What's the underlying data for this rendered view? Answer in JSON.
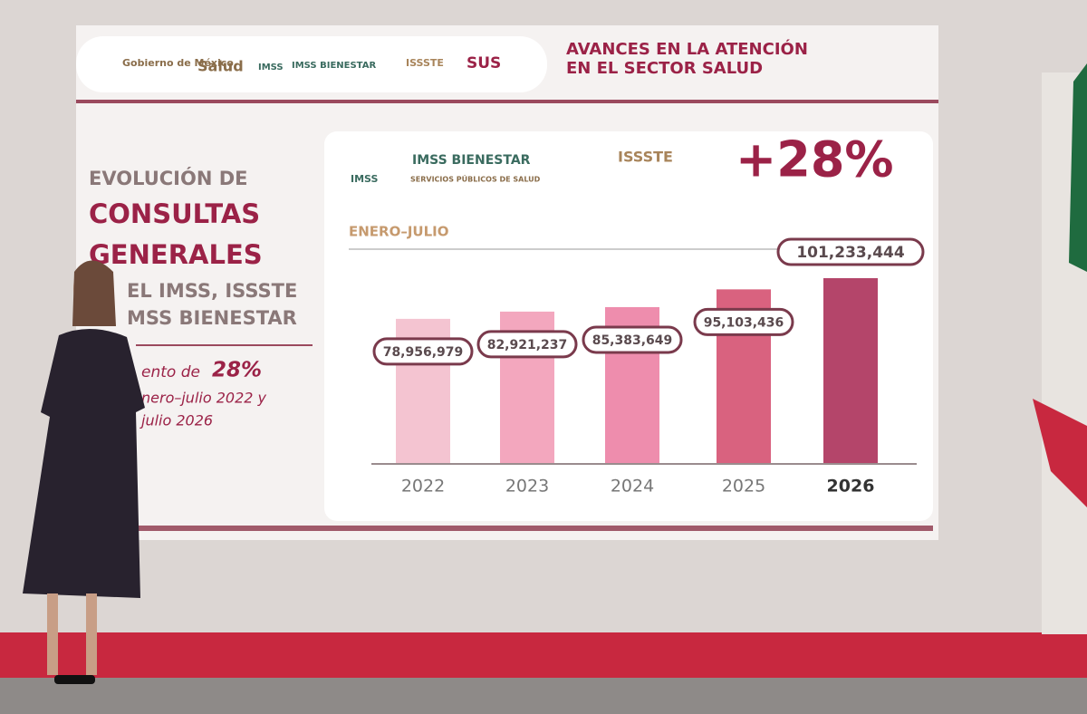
{
  "header": {
    "gobierno": "Gobierno de México",
    "salud": "Salud",
    "imss": "IMSS",
    "imss_bienestar": "IMSS BIENESTAR",
    "issste": "ISSSTE",
    "sus": "SUS",
    "title_line1": "AVANCES EN LA ATENCIÓN",
    "title_line2": "EN EL SECTOR SALUD"
  },
  "side_text": {
    "line1": "EVOLUCIÓN DE",
    "line2": "CONSULTAS",
    "line3": "GENERALES",
    "line4": "EL IMSS, ISSSTE",
    "line5": "MSS BIENESTAR",
    "line6a": "ento de",
    "line6b": "28%",
    "line7": "nero–julio 2022 y",
    "line8": "julio 2026"
  },
  "chart_data": {
    "type": "bar",
    "logos": {
      "imss": "IMSS",
      "imss_bienestar": "IMSS BIENESTAR",
      "imss_bienestar_sub": "SERVICIOS PÚBLICOS DE SALUD",
      "issste": "ISSSTE"
    },
    "annotation": "+28%",
    "subtitle": "ENERO–JULIO",
    "categories": [
      "2022",
      "2023",
      "2024",
      "2025",
      "2026"
    ],
    "values": [
      78956979,
      82921237,
      85383649,
      95103436,
      101233444
    ],
    "value_labels": [
      "78,956,979",
      "82,921,237",
      "85,383,649",
      "95,103,436",
      "101,233,444"
    ],
    "colors": [
      "#f4c4d1",
      "#f3a7be",
      "#ee8dad",
      "#d9627f",
      "#b4456a"
    ]
  }
}
